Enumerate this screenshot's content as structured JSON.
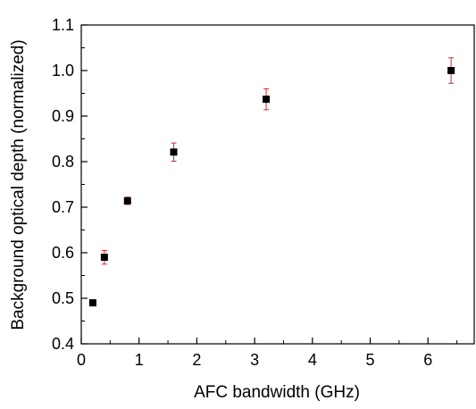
{
  "chart_data": {
    "type": "scatter",
    "title": "",
    "xlabel": "AFC bandwidth (GHz)",
    "ylabel": "Background optical depth (normalized)",
    "xlim": [
      0,
      6.8
    ],
    "ylim": [
      0.4,
      1.1
    ],
    "x_ticks": [
      0,
      1,
      2,
      3,
      4,
      5,
      6
    ],
    "y_ticks": [
      0.4,
      0.5,
      0.6,
      0.7,
      0.8,
      0.9,
      1.0,
      1.1
    ],
    "x_tick_labels": [
      "0",
      "1",
      "2",
      "3",
      "4",
      "5",
      "6"
    ],
    "y_tick_labels": [
      "0.4",
      "0.5",
      "0.6",
      "0.7",
      "0.8",
      "0.9",
      "1.0",
      "1.1"
    ],
    "grid": false,
    "legend": "none",
    "series": [
      {
        "marker": "square",
        "color": "#000000",
        "errorbar_color": "#d42a2a",
        "x": [
          0.2,
          0.4,
          0.8,
          1.6,
          3.2,
          6.4
        ],
        "y": [
          0.49,
          0.59,
          0.714,
          0.821,
          0.937,
          1.0
        ],
        "yerr": [
          0.004,
          0.015,
          0.008,
          0.02,
          0.023,
          0.028
        ]
      }
    ]
  }
}
